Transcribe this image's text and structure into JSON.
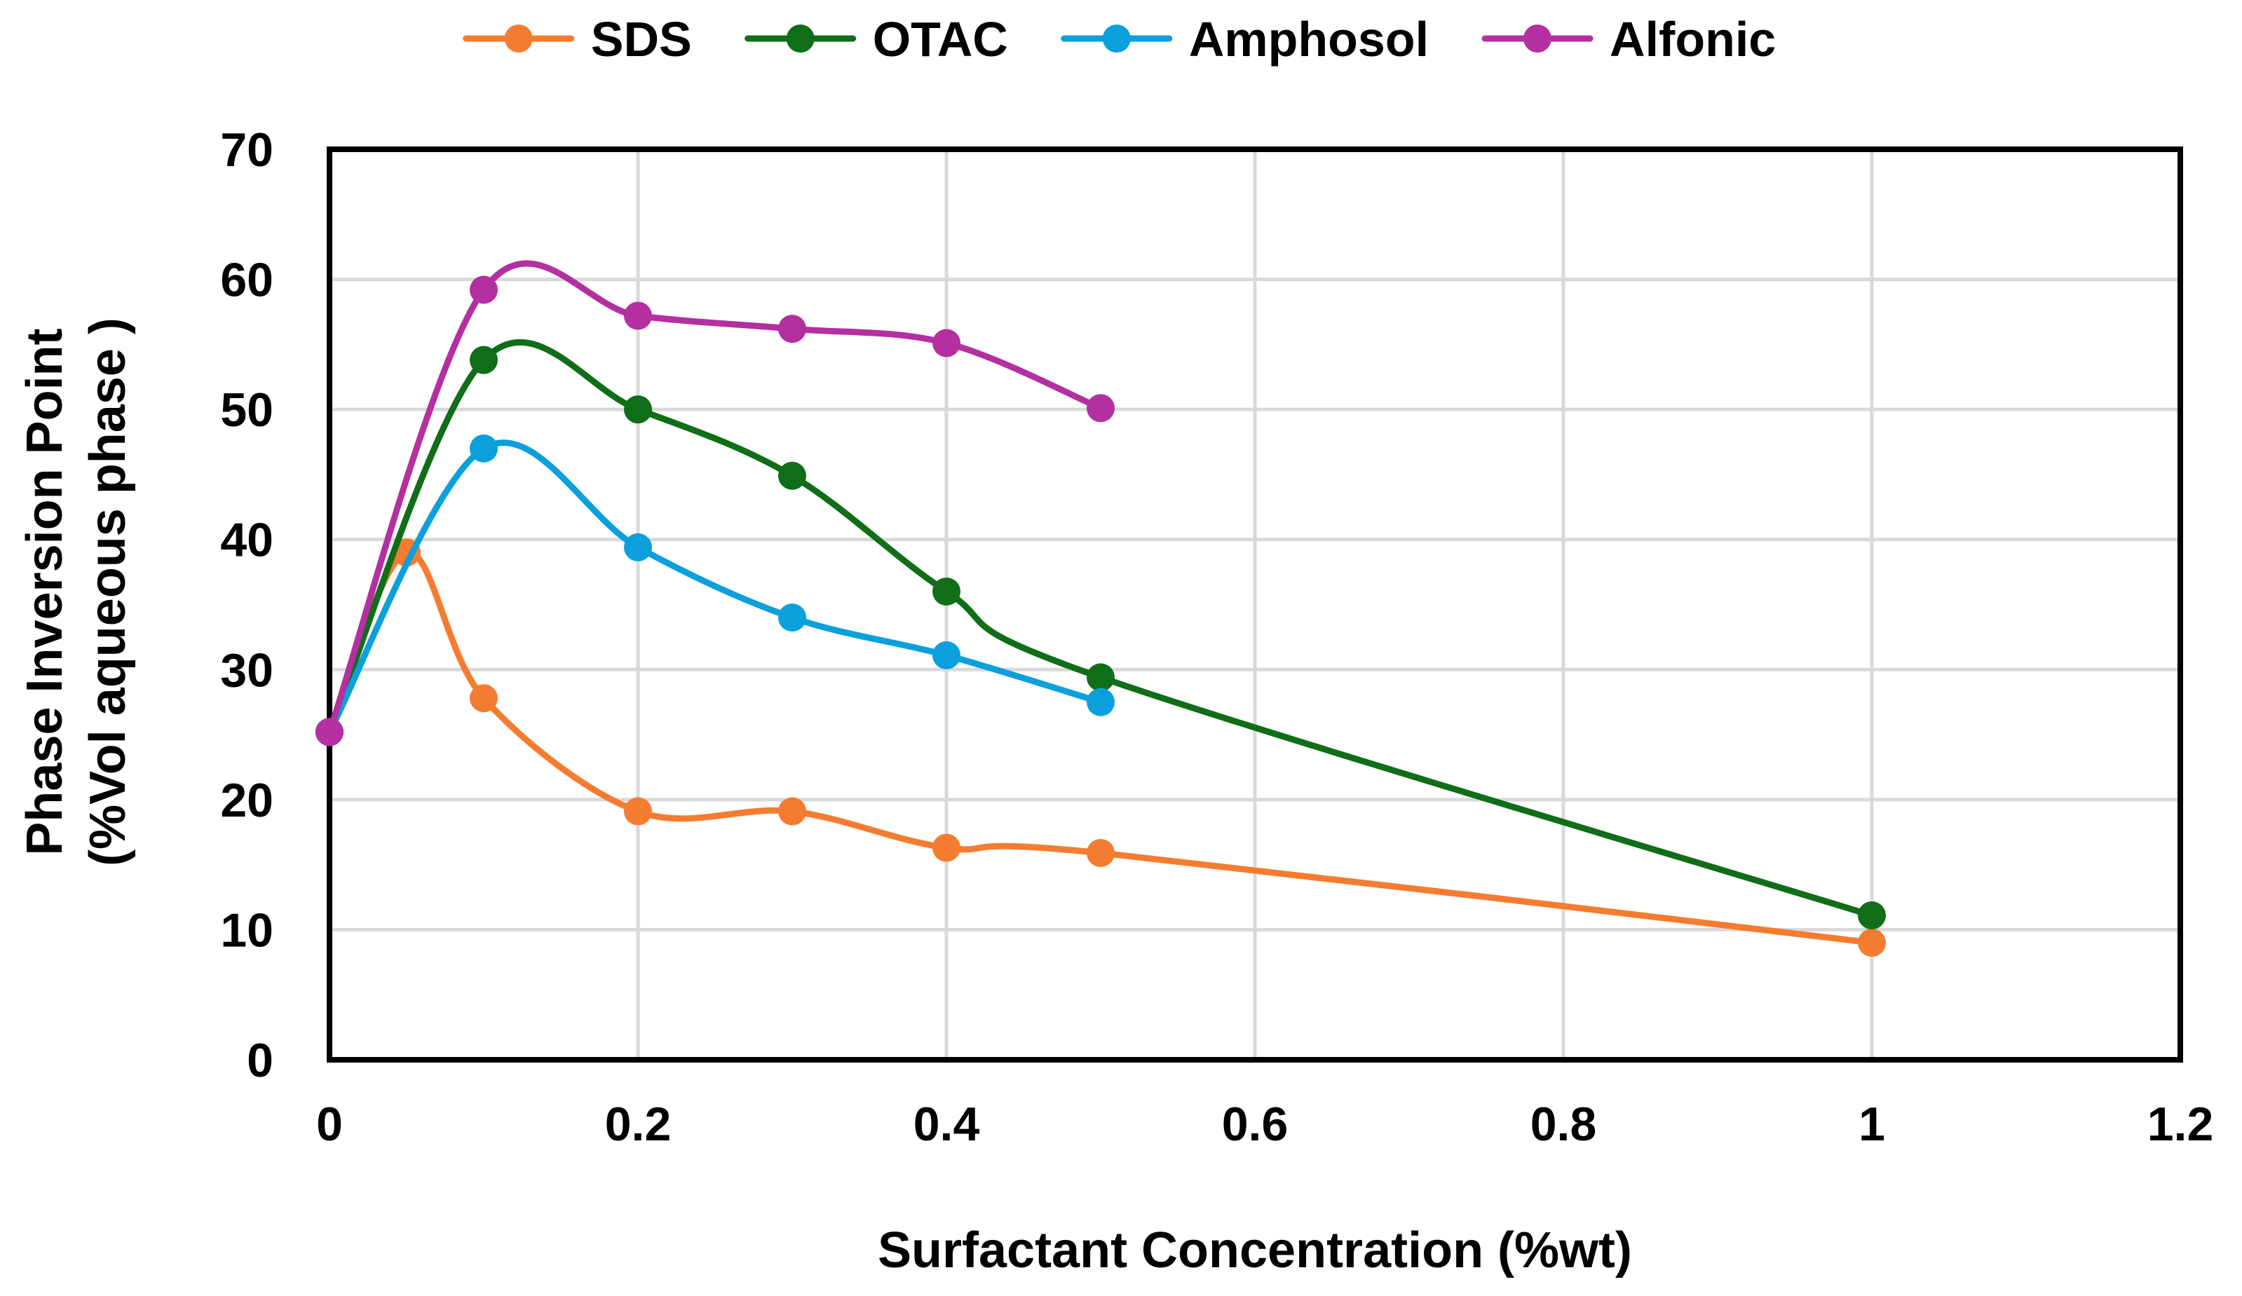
{
  "chart_data": {
    "type": "line",
    "title": "",
    "xlabel": "Surfactant Concentration (%wt)",
    "ylabel_lines": [
      "Phase Inversion Point",
      "(%Vol aqueous phase )"
    ],
    "xlim": [
      0,
      1.2
    ],
    "ylim": [
      0,
      70
    ],
    "x_ticks": [
      0,
      0.2,
      0.4,
      0.6,
      0.8,
      1,
      1.2
    ],
    "x_tick_labels": [
      "0",
      "0.2",
      "0.4",
      "0.6",
      "0.8",
      "1",
      "1.2"
    ],
    "y_ticks": [
      0,
      10,
      20,
      30,
      40,
      50,
      60,
      70
    ],
    "y_tick_labels": [
      "0",
      "10",
      "20",
      "30",
      "40",
      "50",
      "60",
      "70"
    ],
    "grid": true,
    "smooth": true,
    "legend_position": "top",
    "series": [
      {
        "name": "SDS",
        "color": "#F47C30",
        "x": [
          0,
          0.05,
          0.1,
          0.2,
          0.3,
          0.4,
          0.5,
          1
        ],
        "y": [
          25.2,
          39,
          27.8,
          19.1,
          19.1,
          16.3,
          15.9,
          9
        ]
      },
      {
        "name": "OTAC",
        "color": "#0F6E17",
        "x": [
          0,
          0.1,
          0.2,
          0.3,
          0.4,
          0.5,
          1
        ],
        "y": [
          25.2,
          53.8,
          50,
          44.9,
          36,
          29.4,
          11.1
        ]
      },
      {
        "name": "Amphosol",
        "color": "#0BA0DC",
        "x": [
          0,
          0.1,
          0.2,
          0.3,
          0.4,
          0.5
        ],
        "y": [
          25.2,
          47,
          39.4,
          34,
          31.1,
          27.5
        ]
      },
      {
        "name": "Alfonic",
        "color": "#B42FA0",
        "x": [
          0,
          0.1,
          0.2,
          0.3,
          0.4,
          0.5
        ],
        "y": [
          25.2,
          59.2,
          57.2,
          56.2,
          55.1,
          50.1
        ]
      }
    ]
  }
}
